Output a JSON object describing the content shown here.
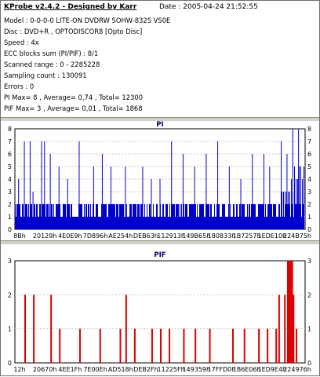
{
  "header": {
    "title": "KProbe v2.4.2 - Designed by Karr",
    "date": "Date : 2005-04-24 21:52:55"
  },
  "info_lines": [
    "Model : 0-0-0-0 LITE-ON DVDRW SOHW-832S  VS0E",
    "Disc : DVD+R , OPTODISCOR8 [Opto Disc]",
    "Speed : 4x",
    "ECC blocks sum (PI/PIF) : 8/1",
    "Scanned range : 0 - 2285228",
    "Sampling count : 130091",
    "Errors : 0",
    "PI Max= 8 , Average= 0,74 , Total= 12300",
    "PIF Max= 3 , Average= 0,01 , Total= 1868"
  ],
  "chart_data": [
    {
      "type": "bar",
      "title": "PI",
      "color": "#0000cc",
      "ylim": [
        0,
        8
      ],
      "yticks": [
        "0",
        "1",
        "2",
        "3",
        "4",
        "5",
        "6",
        "7",
        "8"
      ],
      "xticks": [
        "8Bh",
        "20129h",
        "4E0E9h",
        "7D896h",
        "AE254h",
        "DEB63h",
        "112913h",
        "149B65h",
        "180833h",
        "1B7257h",
        "1EDE10h",
        "224B75h"
      ],
      "grid": true,
      "series": [
        {
          "base_level": 1,
          "typical_level": 2,
          "spikes_x_frac": [
            0.01,
            0.03,
            0.05,
            0.06,
            0.09,
            0.1,
            0.12,
            0.15,
            0.18,
            0.22,
            0.27,
            0.3,
            0.33,
            0.38,
            0.44,
            0.47,
            0.5,
            0.54,
            0.58,
            0.62,
            0.66,
            0.7,
            0.74,
            0.78,
            0.82,
            0.86,
            0.88,
            0.92,
            0.94,
            0.96,
            0.98
          ],
          "spikes_y": [
            4,
            7,
            7,
            3,
            7,
            7,
            6,
            5,
            4,
            7,
            5,
            6,
            5,
            5,
            5,
            4,
            4,
            7,
            6,
            5,
            6,
            7,
            5,
            4,
            6,
            6,
            5,
            7,
            6,
            8,
            8
          ]
        }
      ]
    },
    {
      "type": "bar",
      "title": "PIF",
      "color": "#dd0000",
      "ylim": [
        0,
        3
      ],
      "yticks": [
        "0",
        "1",
        "2",
        "3"
      ],
      "xticks": [
        "12h",
        "20670h",
        "4EE1Fh",
        "7E00Eh",
        "AD518h",
        "DEB2Fh",
        "11225Fh",
        "149359h",
        "17FFD0h",
        "1B6E06h",
        "1ED9E4h",
        "224976h"
      ],
      "grid": true,
      "series": [
        {
          "x_frac": [
            0.03,
            0.06,
            0.12,
            0.15,
            0.22,
            0.29,
            0.36,
            0.38,
            0.41,
            0.47,
            0.5,
            0.53,
            0.58,
            0.62,
            0.67,
            0.75,
            0.79,
            0.84,
            0.87,
            0.9,
            0.91,
            0.93,
            0.94,
            0.95,
            0.96,
            0.97
          ],
          "y": [
            2,
            2,
            2,
            1,
            1,
            1,
            1,
            2,
            1,
            1,
            1,
            1,
            1,
            1,
            1,
            1,
            1,
            1,
            1,
            1,
            2,
            2,
            3,
            3,
            2,
            1
          ]
        }
      ]
    }
  ]
}
